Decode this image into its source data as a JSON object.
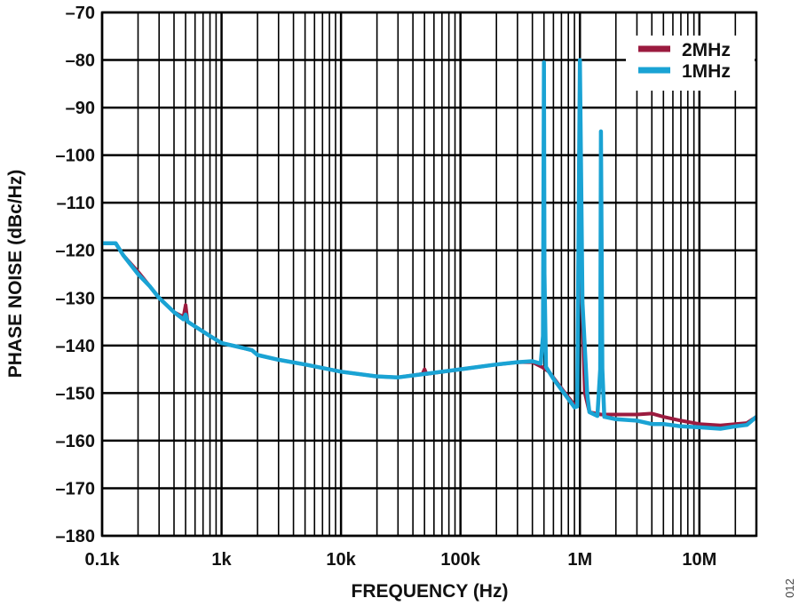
{
  "chart_data": {
    "type": "line",
    "title": "",
    "xlabel": "FREQUENCY (Hz)",
    "ylabel": "PHASE NOISE (dBc/Hz)",
    "xscale": "log",
    "xlim": [
      100,
      30000000
    ],
    "ylim": [
      -180,
      -70
    ],
    "grid": true,
    "legend_position": "top-right",
    "x_ticks": [
      {
        "value": 100,
        "label": "0.1k"
      },
      {
        "value": 1000,
        "label": "1k"
      },
      {
        "value": 10000,
        "label": "10k"
      },
      {
        "value": 100000,
        "label": "100k"
      },
      {
        "value": 1000000,
        "label": "1M"
      },
      {
        "value": 10000000,
        "label": "10M"
      }
    ],
    "y_ticks": [
      {
        "value": -70,
        "label": "–70"
      },
      {
        "value": -80,
        "label": "–80"
      },
      {
        "value": -90,
        "label": "–90"
      },
      {
        "value": -100,
        "label": "–100"
      },
      {
        "value": -110,
        "label": "–110"
      },
      {
        "value": -120,
        "label": "–120"
      },
      {
        "value": -130,
        "label": "–130"
      },
      {
        "value": -140,
        "label": "–140"
      },
      {
        "value": -150,
        "label": "–150"
      },
      {
        "value": -160,
        "label": "–160"
      },
      {
        "value": -170,
        "label": "–170"
      },
      {
        "value": -180,
        "label": "–180"
      }
    ],
    "series": [
      {
        "name": "2MHz",
        "color": "#9b1b3f",
        "points": [
          [
            100,
            -118.5
          ],
          [
            130,
            -118.5
          ],
          [
            150,
            -121
          ],
          [
            200,
            -124.5
          ],
          [
            250,
            -127.5
          ],
          [
            300,
            -130
          ],
          [
            400,
            -133
          ],
          [
            480,
            -134
          ],
          [
            500,
            -131.5
          ],
          [
            520,
            -135
          ],
          [
            600,
            -136
          ],
          [
            800,
            -138
          ],
          [
            1000,
            -139.5
          ],
          [
            1500,
            -140.5
          ],
          [
            1800,
            -141
          ],
          [
            2000,
            -142
          ],
          [
            3000,
            -143
          ],
          [
            5000,
            -144
          ],
          [
            10000,
            -145.5
          ],
          [
            20000,
            -146.5
          ],
          [
            30000,
            -146.7
          ],
          [
            48000,
            -146
          ],
          [
            50000,
            -145
          ],
          [
            52000,
            -146
          ],
          [
            100000,
            -145
          ],
          [
            200000,
            -144
          ],
          [
            300000,
            -143.5
          ],
          [
            400000,
            -143.5
          ],
          [
            480000,
            -144.5
          ],
          [
            550000,
            -145.5
          ],
          [
            700000,
            -149
          ],
          [
            900000,
            -152.5
          ],
          [
            950000,
            -152
          ],
          [
            1000000,
            -82
          ],
          [
            1030000,
            -128
          ],
          [
            1100000,
            -150
          ],
          [
            1200000,
            -154
          ],
          [
            1500000,
            -154.5
          ],
          [
            2000000,
            -154.5
          ],
          [
            3000000,
            -154.5
          ],
          [
            4000000,
            -154.3
          ],
          [
            5000000,
            -155
          ],
          [
            7000000,
            -155.8
          ],
          [
            10000000,
            -156.5
          ],
          [
            15000000,
            -156.8
          ],
          [
            20000000,
            -156.5
          ],
          [
            25000000,
            -156.3
          ],
          [
            30000000,
            -155
          ]
        ]
      },
      {
        "name": "1MHz",
        "color": "#1aa3d4",
        "points": [
          [
            100,
            -118.5
          ],
          [
            130,
            -118.5
          ],
          [
            150,
            -121
          ],
          [
            200,
            -125
          ],
          [
            250,
            -127.5
          ],
          [
            300,
            -130
          ],
          [
            400,
            -133
          ],
          [
            480,
            -134.5
          ],
          [
            500,
            -133.5
          ],
          [
            520,
            -135
          ],
          [
            600,
            -136
          ],
          [
            800,
            -138
          ],
          [
            1000,
            -139.5
          ],
          [
            1500,
            -140.5
          ],
          [
            1800,
            -141
          ],
          [
            2000,
            -142
          ],
          [
            3000,
            -143
          ],
          [
            5000,
            -144
          ],
          [
            10000,
            -145.5
          ],
          [
            20000,
            -146.5
          ],
          [
            30000,
            -146.7
          ],
          [
            50000,
            -146
          ],
          [
            100000,
            -145
          ],
          [
            200000,
            -144
          ],
          [
            300000,
            -143.5
          ],
          [
            400000,
            -143.3
          ],
          [
            470000,
            -143.8
          ],
          [
            490000,
            -138
          ],
          [
            500000,
            -80.5
          ],
          [
            505000,
            -125
          ],
          [
            520000,
            -144.5
          ],
          [
            600000,
            -147
          ],
          [
            900000,
            -153
          ],
          [
            950000,
            -152.8
          ],
          [
            1000000,
            -80
          ],
          [
            1050000,
            -131
          ],
          [
            1150000,
            -150
          ],
          [
            1200000,
            -154
          ],
          [
            1400000,
            -154.8
          ],
          [
            1480000,
            -145
          ],
          [
            1500000,
            -95
          ],
          [
            1540000,
            -145
          ],
          [
            1600000,
            -155
          ],
          [
            2000000,
            -155.5
          ],
          [
            3000000,
            -155.8
          ],
          [
            4000000,
            -156.5
          ],
          [
            5000000,
            -156.5
          ],
          [
            7000000,
            -157
          ],
          [
            10000000,
            -157.2
          ],
          [
            15000000,
            -157.5
          ],
          [
            20000000,
            -157
          ],
          [
            25000000,
            -156.7
          ],
          [
            30000000,
            -155
          ]
        ]
      }
    ]
  },
  "figure_code": "012"
}
